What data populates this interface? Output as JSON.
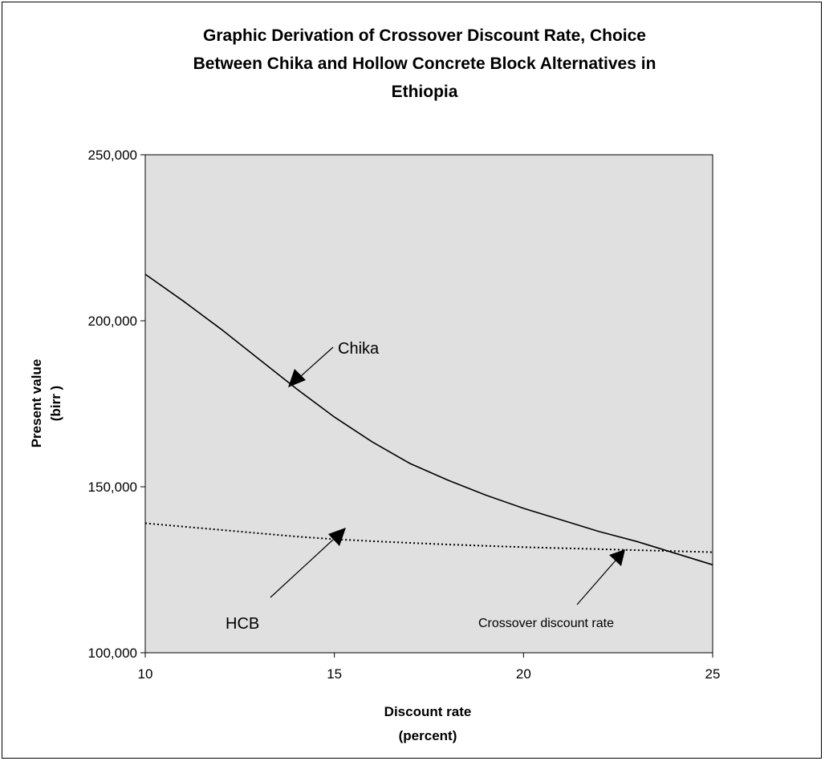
{
  "chart_data": {
    "type": "line",
    "title_lines": [
      "Graphic Derivation of Crossover Discount Rate, Choice",
      "Between Chika and Hollow Concrete Block Alternatives in",
      "Ethiopia"
    ],
    "xlabel_lines": [
      "Discount rate",
      "(percent)"
    ],
    "ylabel_lines": [
      "Present value",
      "(birr )"
    ],
    "xlim": [
      10,
      25
    ],
    "ylim": [
      100000,
      250000
    ],
    "x_ticks": [
      10,
      15,
      20,
      25
    ],
    "x_tick_labels": [
      "10",
      "15",
      "20",
      "25"
    ],
    "y_ticks": [
      100000,
      150000,
      200000,
      250000
    ],
    "y_tick_labels": [
      "100,000",
      "150,000",
      "200,000",
      "250,000"
    ],
    "grid": false,
    "plot_background": "#e0e0e0",
    "series": [
      {
        "name": "Chika",
        "style": "solid",
        "color": "#000000",
        "x": [
          10,
          11,
          12,
          13,
          14,
          15,
          16,
          17,
          18,
          19,
          20,
          21,
          22,
          23,
          24,
          25
        ],
        "y": [
          214000,
          206000,
          197500,
          188500,
          179500,
          171000,
          163500,
          157000,
          152000,
          147500,
          143500,
          140000,
          136500,
          133500,
          130000,
          126500
        ]
      },
      {
        "name": "HCB",
        "style": "dotted",
        "color": "#000000",
        "x": [
          10,
          11,
          12,
          13,
          14,
          15,
          16,
          17,
          18,
          19,
          20,
          21,
          22,
          23,
          24,
          25
        ],
        "y": [
          139000,
          138000,
          137000,
          136000,
          135000,
          134200,
          133600,
          133100,
          132600,
          132200,
          131800,
          131500,
          131200,
          130900,
          130600,
          130300
        ]
      }
    ],
    "annotations": [
      {
        "text": "Chika",
        "style": "large"
      },
      {
        "text": "HCB",
        "style": "large"
      },
      {
        "text": "Crossover discount rate",
        "style": "small"
      }
    ]
  }
}
